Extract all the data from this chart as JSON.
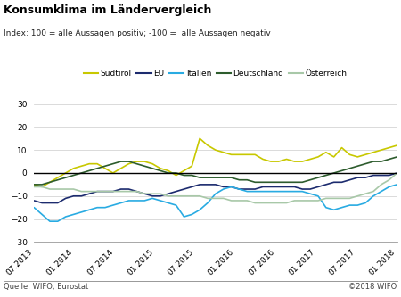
{
  "title": "Konsumklima im Ländervergleich",
  "subtitle": "Index: 100 = alle Aussagen positiv; -100 =  alle Aussagen negativ",
  "footer_left": "Quelle: WIFO, Eurostat",
  "footer_right": "©2018 WIFO",
  "ylim": [
    -30,
    30
  ],
  "yticks": [
    -30,
    -20,
    -10,
    0,
    10,
    20,
    30
  ],
  "xtick_labels": [
    "07.2013",
    "01.2014",
    "07.2014",
    "01.2015",
    "07.2015",
    "01.2016",
    "07.2016",
    "01.2017",
    "07.2017",
    "01.2018"
  ],
  "series": {
    "Südtirol": {
      "color": "#c8c800",
      "linewidth": 1.2,
      "values": [
        -5,
        -6,
        -4,
        -2,
        0,
        2,
        3,
        4,
        4,
        2,
        0,
        2,
        4,
        5,
        5,
        4,
        2,
        1,
        -1,
        1,
        3,
        15,
        12,
        10,
        9,
        8,
        8,
        8,
        8,
        6,
        5,
        5,
        6,
        5,
        5,
        6,
        7,
        9,
        7,
        11,
        8,
        7,
        8,
        9,
        10,
        11,
        12
      ]
    },
    "EU": {
      "color": "#1c2b6e",
      "linewidth": 1.2,
      "values": [
        -12,
        -13,
        -13,
        -13,
        -11,
        -10,
        -10,
        -9,
        -8,
        -8,
        -8,
        -7,
        -7,
        -8,
        -9,
        -10,
        -10,
        -9,
        -8,
        -7,
        -6,
        -5,
        -5,
        -5,
        -6,
        -6,
        -7,
        -7,
        -7,
        -6,
        -6,
        -6,
        -6,
        -6,
        -7,
        -7,
        -6,
        -5,
        -4,
        -4,
        -3,
        -2,
        -2,
        -1,
        -1,
        -1,
        0
      ]
    },
    "Italien": {
      "color": "#29abe2",
      "linewidth": 1.2,
      "values": [
        -15,
        -18,
        -21,
        -21,
        -19,
        -18,
        -17,
        -16,
        -15,
        -15,
        -14,
        -13,
        -12,
        -12,
        -12,
        -11,
        -12,
        -13,
        -14,
        -19,
        -18,
        -16,
        -13,
        -9,
        -7,
        -6,
        -7,
        -8,
        -8,
        -8,
        -8,
        -8,
        -8,
        -8,
        -8,
        -9,
        -10,
        -15,
        -16,
        -15,
        -14,
        -14,
        -13,
        -10,
        -8,
        -6,
        -5
      ]
    },
    "Deutschland": {
      "color": "#2d5c2d",
      "linewidth": 1.2,
      "values": [
        -5,
        -5,
        -4,
        -3,
        -2,
        -1,
        0,
        1,
        2,
        3,
        4,
        5,
        5,
        4,
        3,
        2,
        1,
        0,
        0,
        -1,
        -1,
        -2,
        -2,
        -2,
        -2,
        -2,
        -3,
        -3,
        -4,
        -4,
        -4,
        -4,
        -4,
        -4,
        -4,
        -3,
        -2,
        -1,
        0,
        1,
        2,
        3,
        4,
        5,
        5,
        6,
        7
      ]
    },
    "Österreich": {
      "color": "#a8c8a8",
      "linewidth": 1.2,
      "values": [
        -6,
        -6,
        -7,
        -7,
        -7,
        -7,
        -8,
        -8,
        -8,
        -8,
        -8,
        -8,
        -8,
        -8,
        -9,
        -9,
        -9,
        -10,
        -10,
        -10,
        -10,
        -10,
        -11,
        -11,
        -11,
        -12,
        -12,
        -12,
        -13,
        -13,
        -13,
        -13,
        -13,
        -12,
        -12,
        -12,
        -12,
        -11,
        -11,
        -11,
        -11,
        -10,
        -9,
        -8,
        -5,
        -3,
        0
      ]
    }
  },
  "legend_order": [
    "Südtirol",
    "EU",
    "Italien",
    "Deutschland",
    "Österreich"
  ],
  "background_color": "#ffffff",
  "grid_color": "#cccccc",
  "zero_line_color": "#000000"
}
